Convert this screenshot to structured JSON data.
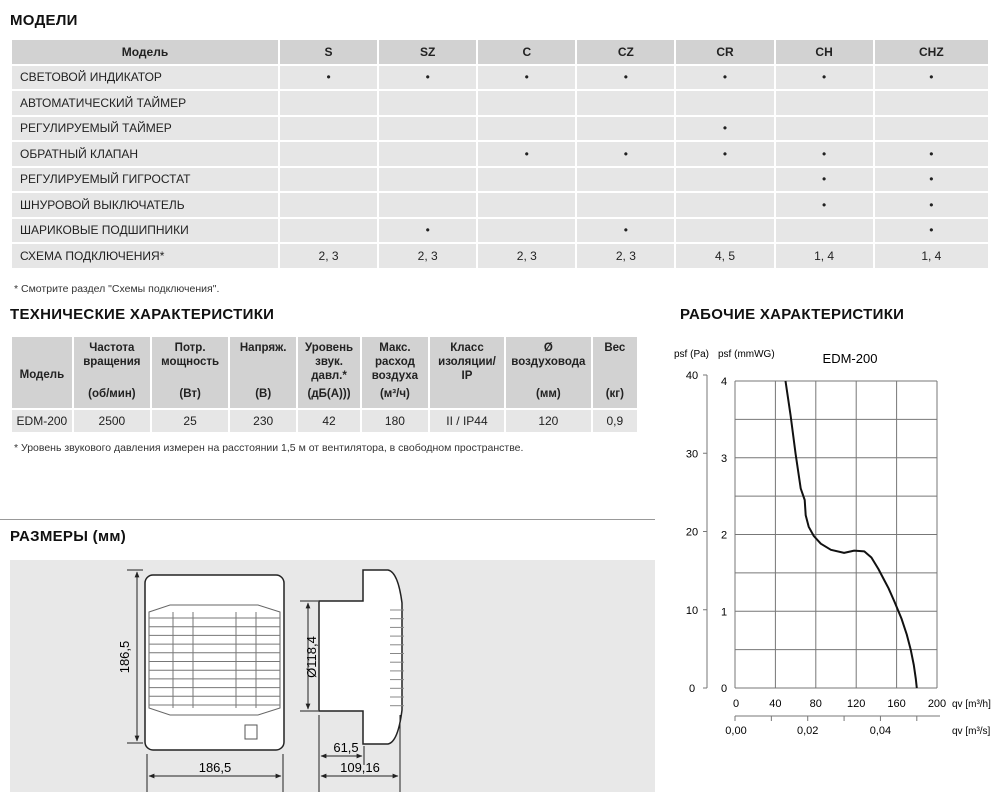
{
  "models": {
    "title": "МОДЕЛИ",
    "header": [
      "Модель",
      "S",
      "SZ",
      "C",
      "CZ",
      "CR",
      "CH",
      "CHZ"
    ],
    "rows": [
      {
        "label": "СВЕТОВОЙ ИНДИКАТОР",
        "cells": [
          "•",
          "•",
          "•",
          "•",
          "•",
          "•",
          "•"
        ]
      },
      {
        "label": "АВТОМАТИЧЕСКИЙ ТАЙМЕР",
        "cells": [
          "",
          "",
          "",
          "",
          "",
          "",
          ""
        ]
      },
      {
        "label": "РЕГУЛИРУЕМЫЙ ТАЙМЕР",
        "cells": [
          "",
          "",
          "",
          "",
          "•",
          "",
          ""
        ]
      },
      {
        "label": "ОБРАТНЫЙ КЛАПАН",
        "cells": [
          "",
          "",
          "•",
          "•",
          "•",
          "•",
          "•"
        ]
      },
      {
        "label": "РЕГУЛИРУЕМЫЙ ГИГРОСТАТ",
        "cells": [
          "",
          "",
          "",
          "",
          "",
          "•",
          "•"
        ]
      },
      {
        "label": "ШНУРОВОЙ ВЫКЛЮЧАТЕЛЬ",
        "cells": [
          "",
          "",
          "",
          "",
          "",
          "•",
          "•"
        ]
      },
      {
        "label": "ШАРИКОВЫЕ ПОДШИПНИКИ",
        "cells": [
          "",
          "•",
          "",
          "•",
          "",
          "",
          "•"
        ]
      },
      {
        "label": "СХЕМА ПОДКЛЮЧЕНИЯ*",
        "cells": [
          "2, 3",
          "2, 3",
          "2, 3",
          "2, 3",
          "4, 5",
          "1, 4",
          "1, 4"
        ]
      }
    ],
    "note": "* Смотрите раздел \"Схемы подключения\"."
  },
  "tech": {
    "title": "ТЕХНИЧЕСКИЕ ХАРАКТЕРИСТИКИ",
    "columns": [
      {
        "name": "Модель",
        "unit": ""
      },
      {
        "name": "Частота вращения",
        "unit": "(об/мин)"
      },
      {
        "name": "Потр. мощность",
        "unit": "(Вт)"
      },
      {
        "name": "Напряж.",
        "unit": "(В)"
      },
      {
        "name": "Уровень звук. давл.*",
        "unit": "(дБ(А)))"
      },
      {
        "name": "Макс. расход воздуха",
        "unit": "(м³/ч)"
      },
      {
        "name": "Класс изоляции/ IP",
        "unit": ""
      },
      {
        "name": "Ø воздуховода",
        "unit": "(мм)"
      },
      {
        "name": "Вес",
        "unit": "(кг)"
      }
    ],
    "row": [
      "EDM-200",
      "2500",
      "25",
      "230",
      "42",
      "180",
      "II / IP44",
      "120",
      "0,9"
    ],
    "note": "* Уровень звукового давления измерен на расстоянии 1,5 м от вентилятора, в свободном пространстве."
  },
  "dimensions": {
    "title": "РАЗМЕРЫ (мм)",
    "height": "186,5",
    "width": "186,5",
    "diameter": "Ø118,4",
    "spigot_depth": "61,5",
    "total_depth": "109,16"
  },
  "performance": {
    "title": "РАБОЧИЕ ХАРАКТЕРИСТИКИ"
  },
  "chart_data": {
    "type": "line",
    "title": "EDM-200",
    "ylabel_left": "psf (Pa)",
    "ylabel_right": "psf (mmWG)",
    "xlabel": "qv [m³/h]",
    "xlabel2": "qv [m³/s]",
    "xlim": [
      0,
      200
    ],
    "ylim": [
      0,
      4
    ],
    "ylim_pa": [
      0,
      40
    ],
    "xticks": [
      "0",
      "40",
      "80",
      "120",
      "160",
      "200"
    ],
    "xticks2": [
      "0,00",
      "0,02",
      "0,04"
    ],
    "yticks": [
      "0",
      "1",
      "2",
      "3",
      "4"
    ],
    "yticks_pa": [
      "0",
      "10",
      "20",
      "30",
      "40"
    ],
    "grid": true,
    "series": [
      {
        "x": [
          50,
          55,
          60,
          65,
          69,
          70,
          73,
          78,
          85,
          95,
          108,
          118,
          128,
          135,
          142,
          148,
          152,
          158,
          165,
          170,
          174,
          177,
          179,
          180
        ],
        "y": [
          4.0,
          3.55,
          3.05,
          2.6,
          2.45,
          2.25,
          2.1,
          1.98,
          1.88,
          1.8,
          1.76,
          1.79,
          1.78,
          1.7,
          1.55,
          1.4,
          1.3,
          1.12,
          0.9,
          0.7,
          0.5,
          0.3,
          0.12,
          0
        ]
      }
    ]
  }
}
